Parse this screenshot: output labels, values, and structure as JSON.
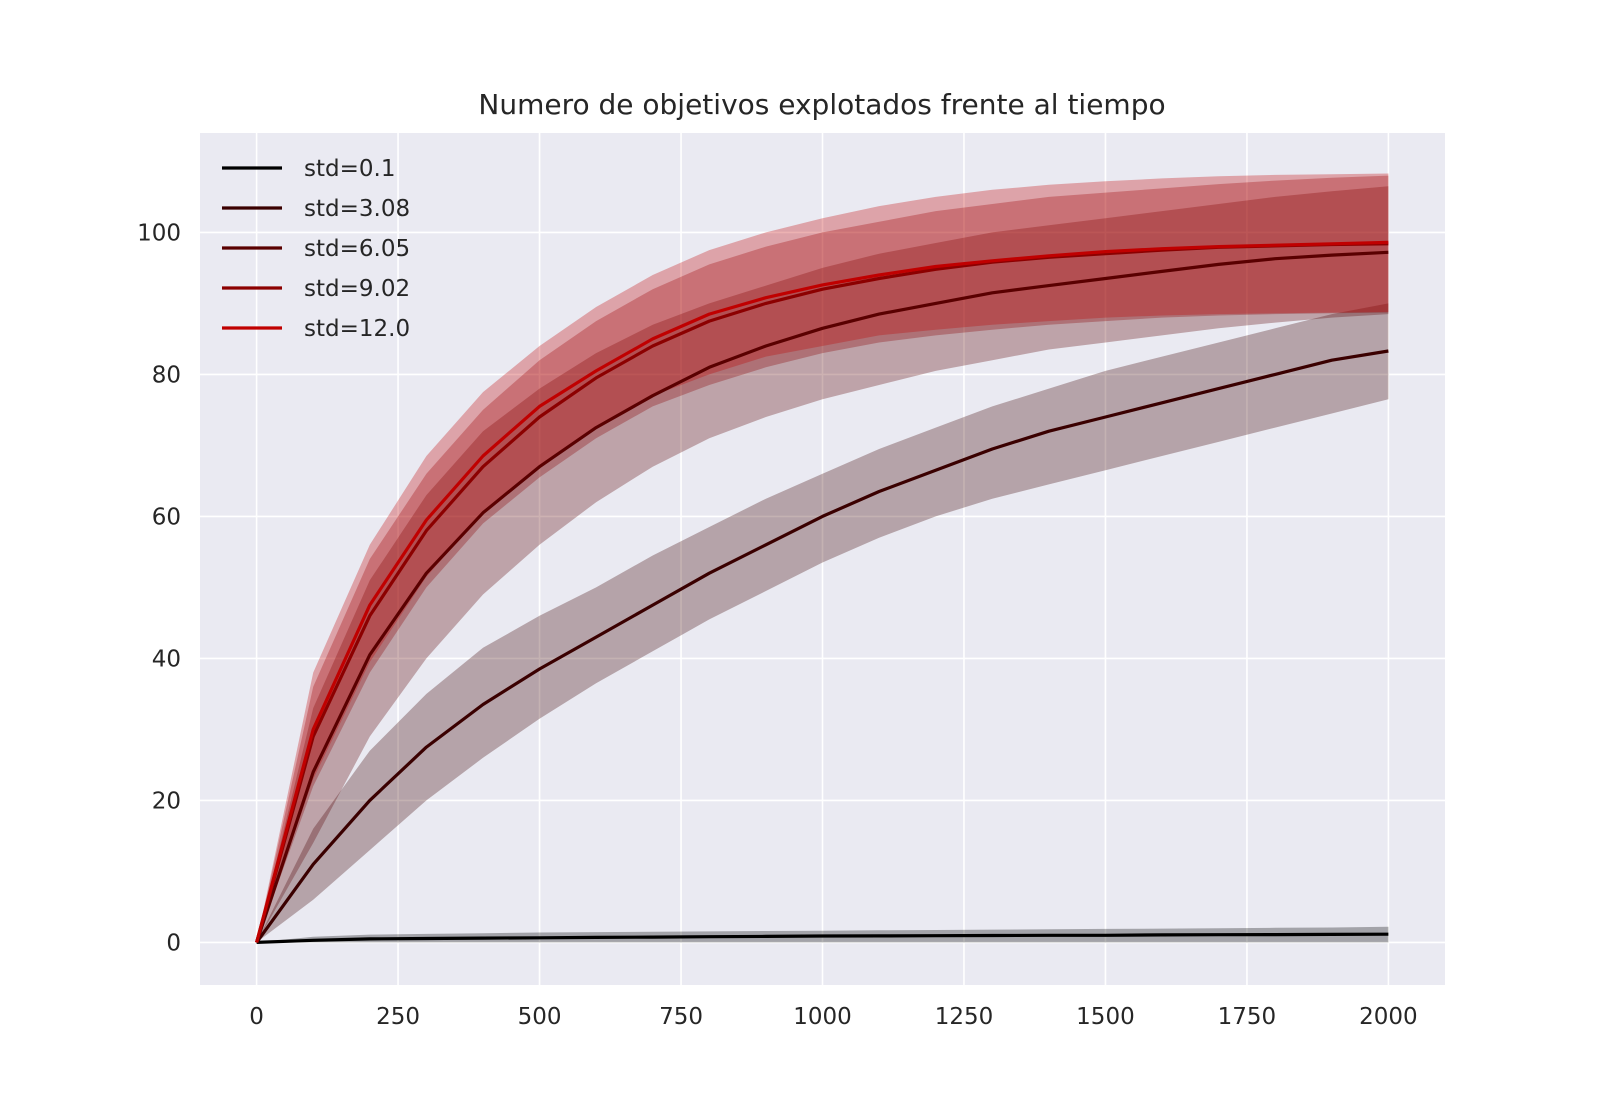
{
  "chart_data": {
    "type": "line",
    "title": "Numero de objetivos explotados frente al tiempo",
    "xlabel": "",
    "ylabel": "",
    "xlim": [
      -100,
      2100
    ],
    "ylim": [
      -6,
      114
    ],
    "grid": true,
    "legend_position": "top-left",
    "x_ticks": [
      0,
      250,
      500,
      750,
      1000,
      1250,
      1500,
      1750,
      2000
    ],
    "x_tick_labels": [
      "0",
      "250",
      "500",
      "750",
      "1000",
      "1250",
      "1500",
      "1750",
      "2000"
    ],
    "y_ticks": [
      0,
      20,
      40,
      60,
      80,
      100
    ],
    "y_tick_labels": [
      "0",
      "20",
      "40",
      "60",
      "80",
      "100"
    ],
    "x": [
      0,
      100,
      200,
      300,
      400,
      500,
      600,
      700,
      800,
      900,
      1000,
      1100,
      1200,
      1300,
      1400,
      1500,
      1600,
      1700,
      1800,
      1900,
      2000
    ],
    "series": [
      {
        "name": "std=0.1",
        "color": "#000000",
        "values": [
          0,
          0.3,
          0.5,
          0.55,
          0.6,
          0.65,
          0.7,
          0.75,
          0.8,
          0.85,
          0.9,
          0.92,
          0.95,
          0.97,
          1.0,
          1.0,
          1.05,
          1.08,
          1.1,
          1.12,
          1.15
        ],
        "lower": [
          0,
          0,
          0,
          0,
          0,
          0,
          0,
          0,
          0,
          0,
          0,
          0,
          0,
          0,
          0,
          0,
          0,
          0,
          0,
          0,
          0
        ],
        "upper": [
          0,
          0.8,
          1.1,
          1.2,
          1.3,
          1.4,
          1.45,
          1.5,
          1.55,
          1.6,
          1.65,
          1.7,
          1.75,
          1.8,
          1.85,
          1.9,
          1.95,
          2.0,
          2.05,
          2.1,
          2.2
        ]
      },
      {
        "name": "std=3.08",
        "color": "#3a0000",
        "values": [
          0,
          11,
          20,
          27.5,
          33.5,
          38.5,
          43,
          47.5,
          52,
          56,
          60,
          63.5,
          66.5,
          69.5,
          72,
          74,
          76,
          78,
          80,
          82,
          83.3
        ],
        "lower": [
          0,
          6,
          13,
          20,
          26,
          31.5,
          36.5,
          41,
          45.5,
          49.5,
          53.5,
          57,
          60,
          62.5,
          64.5,
          66.5,
          68.5,
          70.5,
          72.5,
          74.5,
          76.5
        ],
        "upper": [
          0,
          16,
          27,
          35,
          41.5,
          46,
          50,
          54.5,
          58.5,
          62.5,
          66,
          69.5,
          72.5,
          75.5,
          78,
          80.5,
          82.5,
          84.5,
          86.5,
          88.5,
          90
        ]
      },
      {
        "name": "std=6.05",
        "color": "#5a0000",
        "values": [
          0,
          24,
          40.5,
          52,
          60.5,
          67,
          72.5,
          77,
          81,
          84,
          86.5,
          88.5,
          90,
          91.5,
          92.5,
          93.5,
          94.5,
          95.5,
          96.3,
          96.8,
          97.2
        ],
        "lower": [
          0,
          14,
          29,
          40,
          49,
          56,
          62,
          67,
          71,
          74,
          76.5,
          78.5,
          80.5,
          82,
          83.5,
          84.5,
          85.5,
          86.5,
          87.3,
          88,
          88.5
        ],
        "upper": [
          0,
          33,
          51,
          63,
          72,
          78,
          83,
          87,
          90,
          92.5,
          95,
          97,
          98.5,
          100,
          101,
          102,
          103,
          104,
          105,
          105.8,
          106.5
        ]
      },
      {
        "name": "std=9.02",
        "color": "#8c0000",
        "values": [
          0,
          29,
          46,
          58,
          67,
          74,
          79.5,
          84,
          87.5,
          90,
          92,
          93.5,
          94.8,
          95.8,
          96.5,
          97,
          97.5,
          97.9,
          98.1,
          98.3,
          98.4
        ],
        "lower": [
          0,
          22,
          38,
          50,
          59,
          65.5,
          71,
          75.5,
          78.5,
          81,
          83,
          84.5,
          85.5,
          86.3,
          87,
          87.5,
          88,
          88.3,
          88.5,
          88.6,
          88.7
        ],
        "upper": [
          0,
          36,
          54,
          66,
          75,
          82,
          87.5,
          92,
          95.5,
          98,
          100,
          101.5,
          103,
          104,
          105,
          105.6,
          106.2,
          106.8,
          107.3,
          107.7,
          108
        ]
      },
      {
        "name": "std=12.0",
        "color": "#c00000",
        "values": [
          0,
          30,
          47.5,
          59.5,
          68.5,
          75.5,
          80.5,
          85,
          88.5,
          90.8,
          92.6,
          94,
          95.2,
          96,
          96.7,
          97.3,
          97.7,
          98,
          98.2,
          98.4,
          98.6
        ],
        "lower": [
          0,
          23,
          39.5,
          51.5,
          60.5,
          67,
          72.5,
          77,
          80,
          82.5,
          84,
          85.5,
          86.3,
          87,
          87.5,
          88,
          88.3,
          88.5,
          88.6,
          88.7,
          88.8
        ],
        "upper": [
          0,
          38,
          56,
          68.5,
          77.5,
          84,
          89.5,
          94,
          97.5,
          100,
          102,
          103.7,
          105,
          106,
          106.7,
          107.2,
          107.6,
          107.9,
          108.1,
          108.2,
          108.3
        ]
      }
    ]
  },
  "colors": {
    "plot_background": "#eaeaf2",
    "grid": "#ffffff",
    "text": "#262626"
  }
}
